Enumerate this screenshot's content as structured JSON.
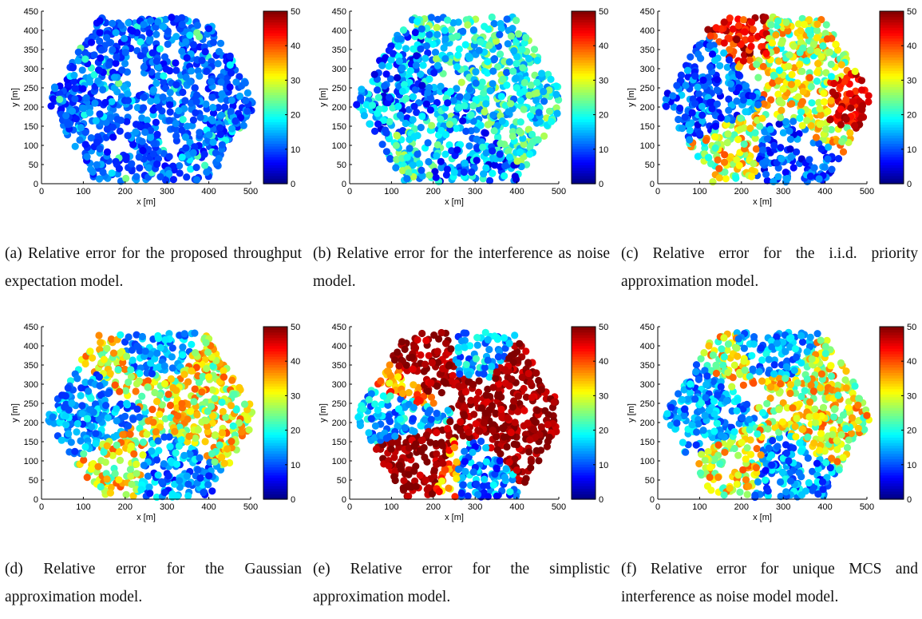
{
  "figure": {
    "panels": [
      {
        "caption": "(a) Relative error for the proposed throughput expectation model."
      },
      {
        "caption": "(b) Relative error for the interference as noise model."
      },
      {
        "caption": "(c) Relative error for the i.i.d. priority approximation model."
      },
      {
        "caption": "(d) Relative error for the Gaussian approximation model."
      },
      {
        "caption": "(e) Relative error for the simplistic approximation model."
      },
      {
        "caption": "(f) Relative error for unique MCS and interference as noise model model."
      }
    ]
  },
  "chart_data": [
    {
      "type": "scatter",
      "panel": "a",
      "xlabel": "x [m]",
      "ylabel": "y [m]",
      "xlim": [
        0,
        500
      ],
      "ylim": [
        0,
        450
      ],
      "xticks": [
        0,
        100,
        200,
        300,
        400,
        500
      ],
      "yticks": [
        0,
        50,
        100,
        150,
        200,
        250,
        300,
        350,
        400,
        450
      ],
      "colorbar": {
        "colormap": "jet",
        "range": [
          0,
          50
        ],
        "ticks": [
          0,
          10,
          20,
          30,
          40,
          50
        ]
      },
      "points": {
        "count": 900,
        "region": "hexagon",
        "center": [
          265,
          215
        ],
        "error_level": "low, mostly 0-15"
      }
    },
    {
      "type": "scatter",
      "panel": "b",
      "xlabel": "x [m]",
      "ylabel": "y [m]",
      "xlim": [
        0,
        500
      ],
      "ylim": [
        0,
        450
      ],
      "xticks": [
        0,
        100,
        200,
        300,
        400,
        500
      ],
      "yticks": [
        0,
        50,
        100,
        150,
        200,
        250,
        300,
        350,
        400,
        450
      ],
      "colorbar": {
        "colormap": "jet",
        "range": [
          0,
          50
        ],
        "ticks": [
          0,
          10,
          20,
          30,
          40,
          50
        ]
      },
      "points": {
        "count": 900,
        "region": "hexagon",
        "center": [
          265,
          215
        ],
        "error_level": "low to moderate, mostly 5-30"
      }
    },
    {
      "type": "scatter",
      "panel": "c",
      "xlabel": "x [m]",
      "ylabel": "y [m]",
      "xlim": [
        0,
        500
      ],
      "ylim": [
        0,
        450
      ],
      "xticks": [
        0,
        100,
        200,
        300,
        400,
        500
      ],
      "yticks": [
        0,
        50,
        100,
        150,
        200,
        250,
        300,
        350,
        400,
        450
      ],
      "colorbar": {
        "colormap": "jet",
        "range": [
          0,
          50
        ],
        "ticks": [
          0,
          10,
          20,
          30,
          40,
          50
        ]
      },
      "points": {
        "count": 900,
        "region": "hexagon",
        "center": [
          265,
          215
        ],
        "error_level": "mixed, up to 50 in upper and right areas"
      }
    },
    {
      "type": "scatter",
      "panel": "d",
      "xlabel": "x [m]",
      "ylabel": "y [m]",
      "xlim": [
        0,
        500
      ],
      "ylim": [
        0,
        450
      ],
      "xticks": [
        0,
        100,
        200,
        300,
        400,
        500
      ],
      "yticks": [
        0,
        50,
        100,
        150,
        200,
        250,
        300,
        350,
        400,
        450
      ],
      "colorbar": {
        "colormap": "jet",
        "range": [
          0,
          50
        ],
        "ticks": [
          0,
          10,
          20,
          30,
          40,
          50
        ]
      },
      "points": {
        "count": 900,
        "region": "hexagon",
        "center": [
          265,
          215
        ],
        "error_level": "moderate, mostly 15-40"
      }
    },
    {
      "type": "scatter",
      "panel": "e",
      "xlabel": "x [m]",
      "ylabel": "y [m]",
      "xlim": [
        0,
        500
      ],
      "ylim": [
        0,
        450
      ],
      "xticks": [
        0,
        100,
        200,
        300,
        400,
        500
      ],
      "yticks": [
        0,
        50,
        100,
        150,
        200,
        250,
        300,
        350,
        400,
        450
      ],
      "colorbar": {
        "colormap": "jet",
        "range": [
          0,
          50
        ],
        "ticks": [
          0,
          10,
          20,
          30,
          40,
          50
        ]
      },
      "points": {
        "count": 900,
        "region": "hexagon",
        "center": [
          265,
          215
        ],
        "error_level": "high, mostly 50 in center, low in three sectors"
      }
    },
    {
      "type": "scatter",
      "panel": "f",
      "xlabel": "x [m]",
      "ylabel": "y [m]",
      "xlim": [
        0,
        500
      ],
      "ylim": [
        0,
        450
      ],
      "xticks": [
        0,
        100,
        200,
        300,
        400,
        500
      ],
      "yticks": [
        0,
        50,
        100,
        150,
        200,
        250,
        300,
        350,
        400,
        450
      ],
      "colorbar": {
        "colormap": "jet",
        "range": [
          0,
          50
        ],
        "ticks": [
          0,
          10,
          20,
          30,
          40,
          50
        ]
      },
      "points": {
        "count": 900,
        "region": "hexagon",
        "center": [
          265,
          215
        ],
        "error_level": "moderate, mostly 15-40"
      }
    }
  ]
}
